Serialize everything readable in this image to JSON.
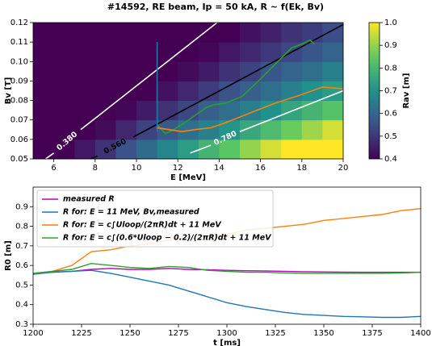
{
  "chart_data": [
    {
      "type": "heatmap",
      "title": "#14592, RE beam, Ip = 50 kA, R ~ f(Ek, Bv)",
      "x_label": "E [MeV]",
      "y_label": "Bv [T]",
      "colorbar_label": "Rav [m]",
      "colormap": "viridis",
      "xlim": [
        5,
        20
      ],
      "ylim": [
        0.05,
        0.12
      ],
      "xticks": [
        6,
        8,
        10,
        12,
        14,
        16,
        18,
        20
      ],
      "yticks": [
        0.05,
        0.06,
        0.07,
        0.08,
        0.09,
        {
          "value": 0.1,
          "label": "0.10"
        },
        0.11,
        0.12
      ],
      "clim": [
        0.4,
        1.0
      ],
      "cticks": [
        0.4,
        0.5,
        0.6,
        0.7,
        0.8,
        0.9,
        {
          "value": 1.0,
          "label": "1.0"
        }
      ],
      "xbins": [
        5,
        6,
        7,
        8,
        9,
        10,
        11,
        12,
        13,
        14,
        15,
        16,
        17,
        18,
        19,
        20
      ],
      "ybins": [
        0.05,
        0.06,
        0.07,
        0.08,
        0.09,
        0.1,
        0.11,
        0.12
      ],
      "z": [
        [
          0.32,
          0.38,
          0.44,
          0.49,
          0.55,
          0.61,
          0.67,
          0.73,
          0.79,
          0.84,
          0.9,
          0.96,
          1.02,
          1.08,
          1.13
        ],
        [
          0.27,
          0.32,
          0.37,
          0.42,
          0.47,
          0.52,
          0.57,
          0.62,
          0.66,
          0.71,
          0.76,
          0.81,
          0.86,
          0.91,
          0.96
        ],
        [
          0.23,
          0.28,
          0.32,
          0.36,
          0.41,
          0.45,
          0.49,
          0.53,
          0.58,
          0.62,
          0.66,
          0.7,
          0.75,
          0.79,
          0.83
        ],
        [
          0.21,
          0.24,
          0.28,
          0.32,
          0.36,
          0.4,
          0.43,
          0.47,
          0.51,
          0.55,
          0.58,
          0.62,
          0.66,
          0.7,
          0.73
        ],
        [
          0.19,
          0.22,
          0.25,
          0.29,
          0.32,
          0.35,
          0.39,
          0.42,
          0.45,
          0.49,
          0.52,
          0.56,
          0.59,
          0.62,
          0.66
        ],
        [
          0.17,
          0.2,
          0.23,
          0.26,
          0.29,
          0.32,
          0.35,
          0.38,
          0.41,
          0.44,
          0.47,
          0.5,
          0.53,
          0.56,
          0.59
        ],
        [
          0.15,
          0.18,
          0.21,
          0.24,
          0.26,
          0.29,
          0.32,
          0.35,
          0.38,
          0.4,
          0.43,
          0.46,
          0.49,
          0.51,
          0.54
        ]
      ],
      "contours": [
        {
          "label": "0.380",
          "value": 0.38,
          "color": "#ffffff",
          "x": [
            5.6,
            6.0,
            null,
            7.3,
            13.9
          ],
          "y": [
            0.05,
            0.053,
            null,
            0.065,
            0.12
          ]
        },
        {
          "label": "0.560",
          "value": 0.56,
          "color": "#000000",
          "x": [
            7.8,
            8.1,
            null,
            9.84,
            20
          ],
          "y": [
            0.05,
            0.0515,
            null,
            0.0612,
            0.119
          ]
        },
        {
          "label": "0.780",
          "value": 0.78,
          "color": "#ffffff",
          "x": [
            12.6,
            13.6,
            null,
            15.0,
            20
          ],
          "y": [
            0.053,
            0.057,
            null,
            0.064,
            0.085
          ]
        }
      ],
      "lines": [
        {
          "color": "#1f77b4",
          "x": [
            11,
            11
          ],
          "y": [
            0.064,
            0.11
          ]
        },
        {
          "color": "#2ca02c",
          "x": [
            11.0,
            11.4,
            11.8,
            12.4,
            13.0,
            13.4,
            13.75,
            14.3,
            15.1,
            15.9,
            16.7,
            17.5,
            18.0,
            18.4,
            18.6
          ],
          "y": [
            0.0675,
            0.063,
            0.065,
            0.069,
            0.0736,
            0.0765,
            0.0778,
            0.0786,
            0.082,
            0.09,
            0.0985,
            0.107,
            0.109,
            0.111,
            0.109
          ]
        },
        {
          "color": "#ff7f0e",
          "x": [
            11.0,
            11.6,
            12.2,
            12.8,
            13.6,
            14.3,
            15.5,
            16.7,
            17.9,
            19.0,
            20.0
          ],
          "y": [
            0.066,
            0.065,
            0.064,
            0.065,
            0.066,
            0.0685,
            0.0736,
            0.0786,
            0.0827,
            0.0869,
            0.086
          ]
        }
      ]
    },
    {
      "type": "line",
      "x_label": "t [ms]",
      "y_label": "R0 [m]",
      "xlim": [
        1200,
        1400
      ],
      "ylim": [
        0.3,
        1.0
      ],
      "xticks": [
        1200,
        1225,
        1250,
        1275,
        1300,
        1325,
        1350,
        1375,
        1400
      ],
      "yticks": [
        0.3,
        0.4,
        0.5,
        0.6,
        0.7,
        0.8,
        0.9
      ],
      "legend": "upper left",
      "x": [
        1200,
        1210,
        1220,
        1230,
        1240,
        1250,
        1260,
        1270,
        1280,
        1290,
        1300,
        1310,
        1320,
        1330,
        1340,
        1350,
        1360,
        1370,
        1380,
        1390,
        1400
      ],
      "series": [
        {
          "name": "measured R",
          "color": "#bf00bf",
          "values": [
            0.56,
            0.565,
            0.57,
            0.58,
            0.585,
            0.58,
            0.58,
            0.585,
            0.58,
            0.578,
            0.575,
            0.573,
            0.572,
            0.57,
            0.568,
            0.567,
            0.566,
            0.565,
            0.565,
            0.565,
            0.565
          ]
        },
        {
          "name": "R for: E = 11 MeV, Bv,measured",
          "color": "#1f77b4",
          "values": [
            0.555,
            0.565,
            0.57,
            0.575,
            0.56,
            0.54,
            0.52,
            0.5,
            0.47,
            0.44,
            0.41,
            0.39,
            0.375,
            0.36,
            0.35,
            0.345,
            0.34,
            0.338,
            0.335,
            0.335,
            0.34
          ]
        },
        {
          "name": "R for: E = c∫Uloop/(2πR)dt + 11 MeV",
          "color": "#ff7f0e",
          "values": [
            0.56,
            0.57,
            0.6,
            0.67,
            0.68,
            0.7,
            0.71,
            0.73,
            0.74,
            0.75,
            0.76,
            0.78,
            0.79,
            0.8,
            0.81,
            0.83,
            0.84,
            0.85,
            0.86,
            0.88,
            0.89
          ]
        },
        {
          "name": "R for: E = c∫(0.6*Uloop − 0.2)/(2πR)dt + 11 MeV",
          "color": "#2ca02c",
          "values": [
            0.56,
            0.57,
            0.58,
            0.61,
            0.6,
            0.59,
            0.585,
            0.595,
            0.59,
            0.575,
            0.57,
            0.565,
            0.565,
            0.562,
            0.56,
            0.56,
            0.56,
            0.56,
            0.56,
            0.562,
            0.565
          ]
        }
      ]
    }
  ]
}
